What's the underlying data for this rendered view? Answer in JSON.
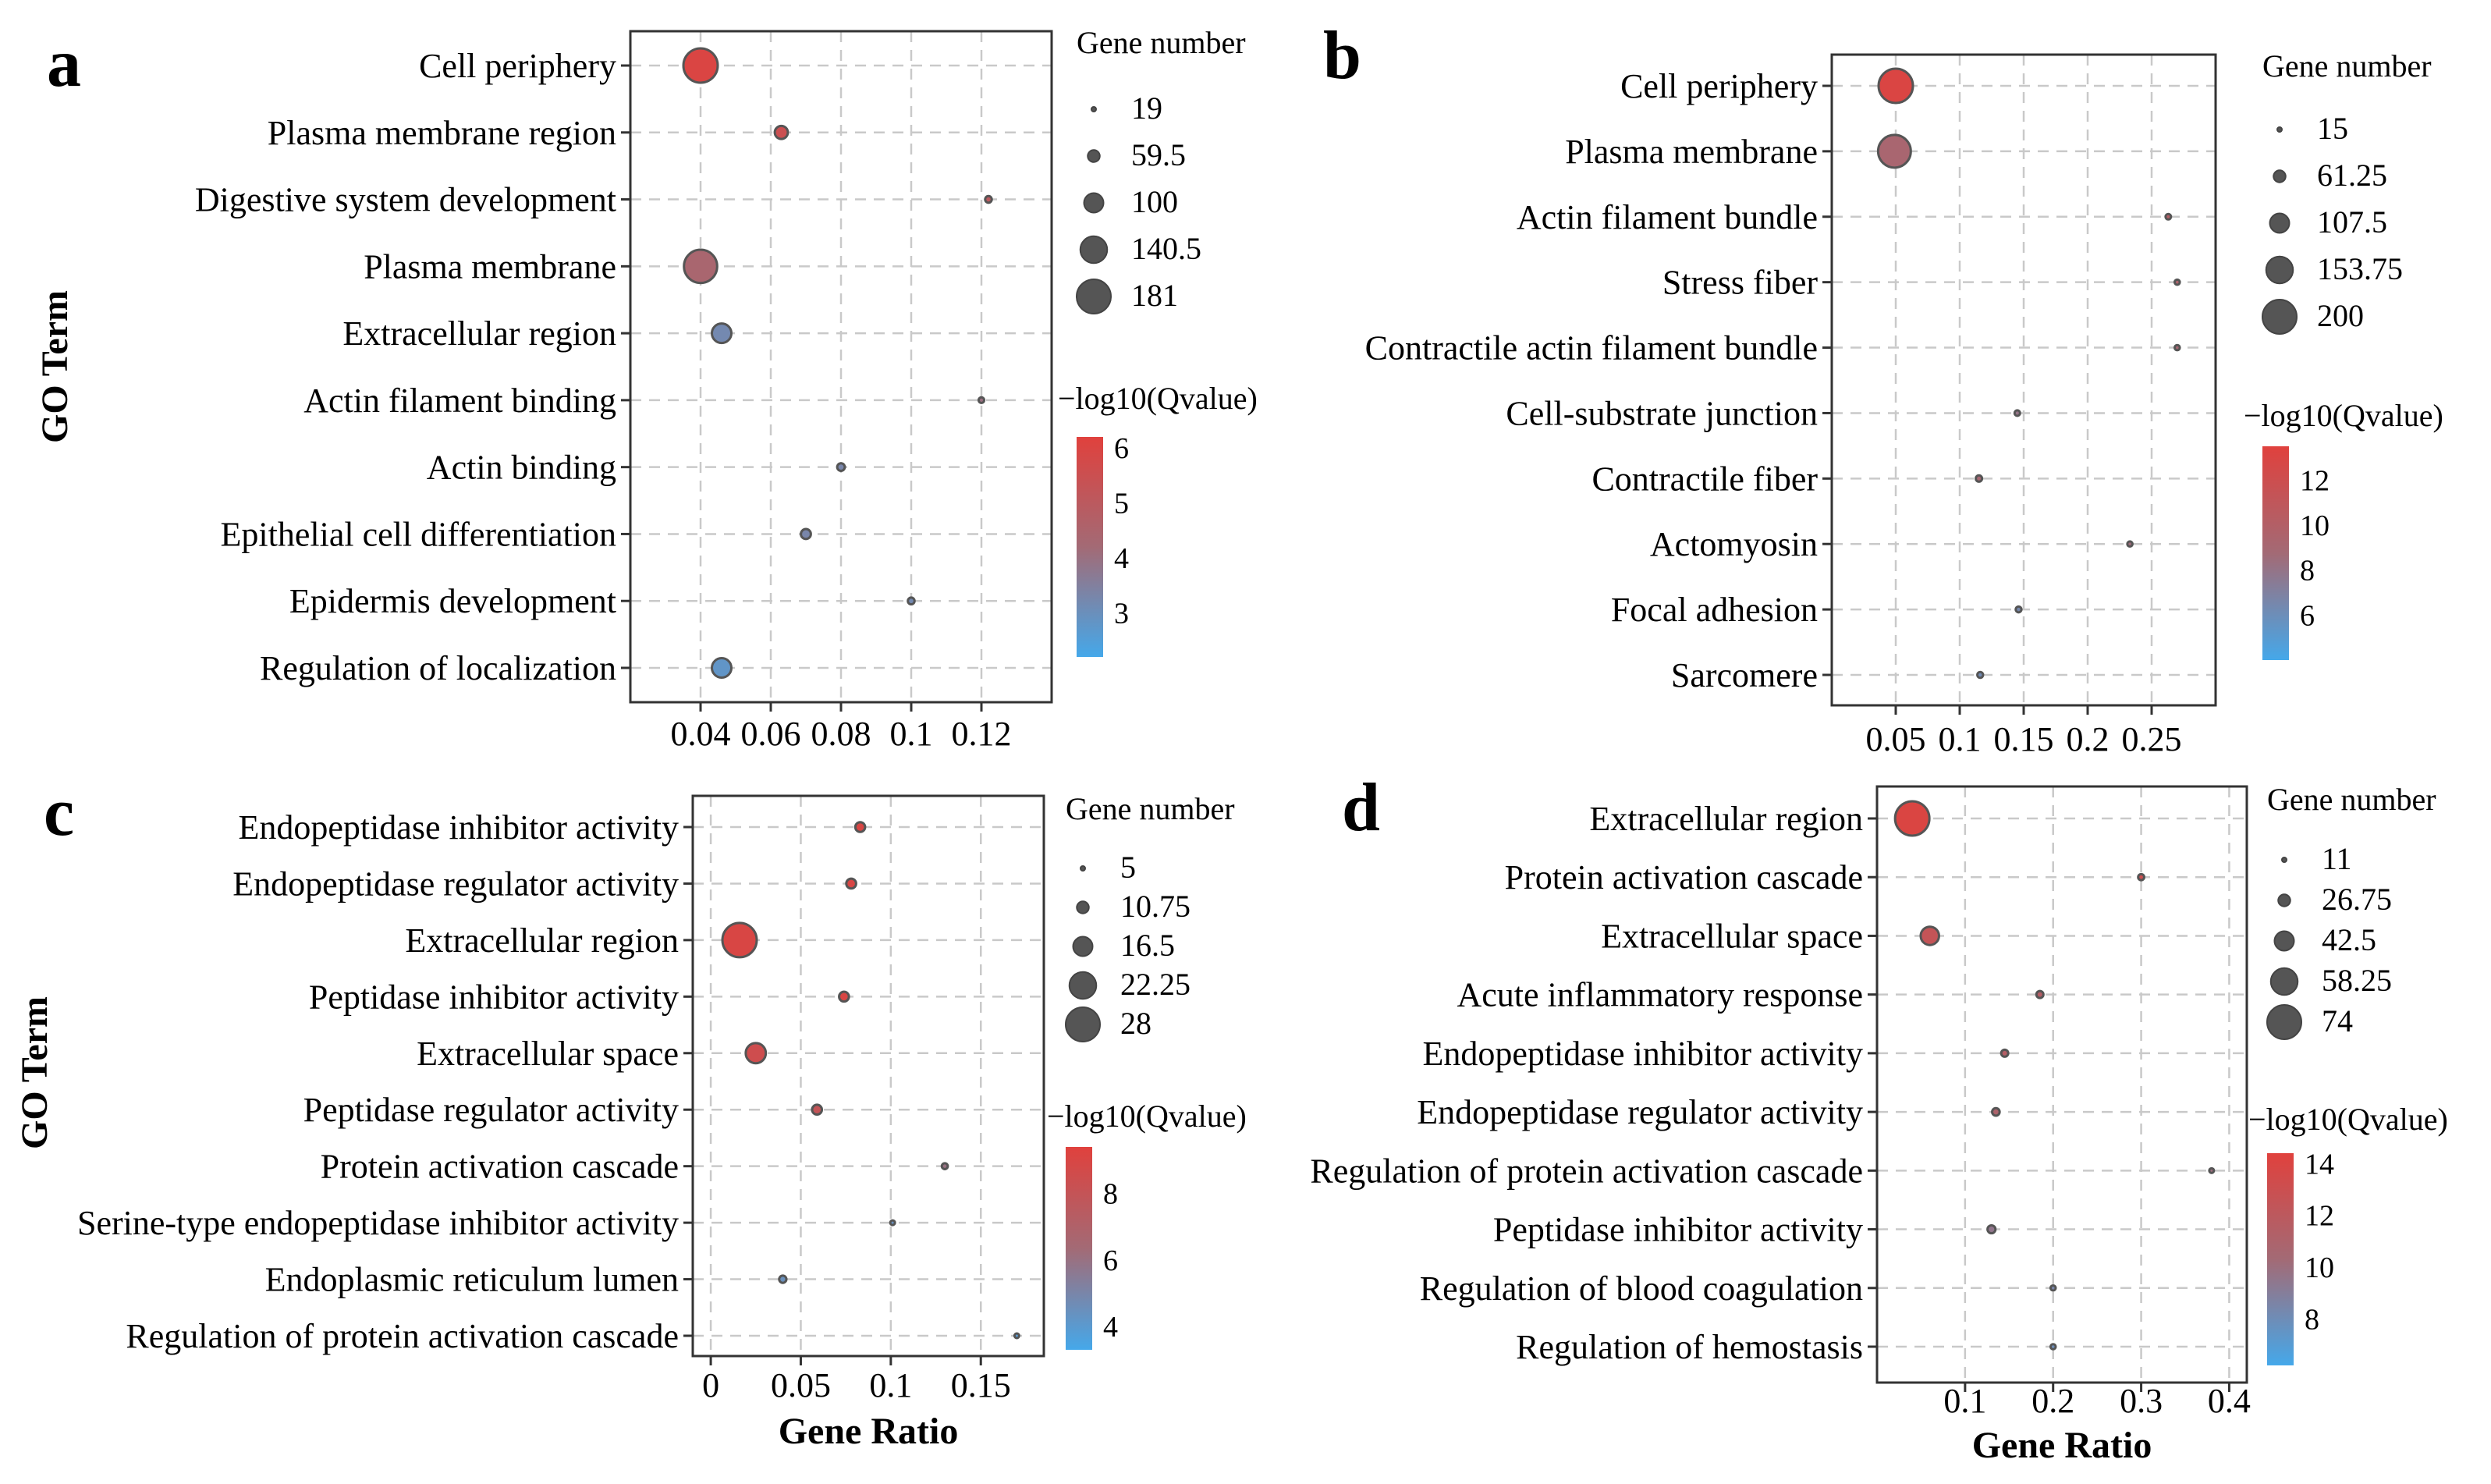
{
  "chart_data": [
    {
      "type": "scatter",
      "panel": "a",
      "title": "",
      "xlabel": "",
      "ylabel": "GO Term",
      "xlim": [
        0.02,
        0.14
      ],
      "xticks": [
        0.04,
        0.06,
        0.08,
        0.1,
        0.12
      ],
      "xtick_labels": [
        "0.04",
        "0.06",
        "0.08",
        "0.1",
        "0.12"
      ],
      "categories": [
        "Cell periphery",
        "Plasma membrane region",
        "Digestive system development",
        "Plasma membrane",
        "Extracellular region",
        "Actin filament binding",
        "Actin binding",
        "Epithelial cell differentiation",
        "Epidermis development",
        "Regulation of localization"
      ],
      "gene_ratio": [
        0.04,
        0.063,
        0.122,
        0.04,
        0.046,
        0.12,
        0.08,
        0.07,
        0.1,
        0.046
      ],
      "gene_number": [
        181,
        65,
        30,
        175,
        100,
        24,
        35,
        48,
        30,
        100
      ],
      "neg_log10_qvalue": [
        6.0,
        5.5,
        5.0,
        4.4,
        3.2,
        4.0,
        3.3,
        3.3,
        3.2,
        2.8
      ],
      "size_legend_title": "Gene number",
      "size_legend": [
        "19",
        "59.5",
        "100",
        "140.5",
        "181"
      ],
      "size_legend_values": [
        19,
        59.5,
        100,
        140.5,
        181
      ],
      "color_legend_title": "−log10(Qvalue)",
      "color_range": [
        2.2,
        6.2
      ],
      "color_ticks": [
        "6",
        "5",
        "4",
        "3"
      ],
      "color_tick_values": [
        6,
        5,
        4,
        3
      ],
      "grid": true
    },
    {
      "type": "scatter",
      "panel": "b",
      "title": "",
      "xlabel": "",
      "ylabel": "",
      "xlim": [
        0.0,
        0.3
      ],
      "xticks": [
        0.05,
        0.1,
        0.15,
        0.2,
        0.25
      ],
      "xtick_labels": [
        "0.05",
        "0.1",
        "0.15",
        "0.2",
        "0.25"
      ],
      "categories": [
        "Cell periphery",
        "Plasma membrane",
        "Actin filament bundle",
        "Stress fiber",
        "Contractile actin filament bundle",
        "Cell-substrate junction",
        "Contractile fiber",
        "Actomyosin",
        "Focal adhesion",
        "Sarcomere"
      ],
      "gene_ratio": [
        0.05,
        0.049,
        0.263,
        0.27,
        0.27,
        0.145,
        0.115,
        0.233,
        0.146,
        0.116
      ],
      "gene_number": [
        200,
        190,
        20,
        18,
        18,
        20,
        25,
        18,
        22,
        22
      ],
      "neg_log10_qvalue": [
        13.0,
        9.2,
        10.0,
        9.5,
        9.0,
        8.0,
        9.0,
        8.5,
        6.5,
        6.2
      ],
      "size_legend_title": "Gene number",
      "size_legend": [
        "15",
        "61.25",
        "107.5",
        "153.75",
        "200"
      ],
      "size_legend_values": [
        15,
        61.25,
        107.5,
        153.75,
        200
      ],
      "color_legend_title": "−log10(Qvalue)",
      "color_range": [
        4.0,
        13.5
      ],
      "color_ticks": [
        "12",
        "10",
        "8",
        "6"
      ],
      "color_tick_values": [
        12,
        10,
        8,
        6
      ],
      "grid": true
    },
    {
      "type": "scatter",
      "panel": "c",
      "title": "",
      "xlabel": "Gene Ratio",
      "ylabel": "GO Term",
      "xlim": [
        -0.01,
        0.185
      ],
      "xticks": [
        0,
        0.05,
        0.1,
        0.15
      ],
      "xtick_labels": [
        "0",
        "0.05",
        "0.1",
        "0.15"
      ],
      "categories": [
        "Endopeptidase inhibitor activity",
        "Endopeptidase regulator activity",
        "Extracellular region",
        "Peptidase inhibitor activity",
        "Extracellular space",
        "Peptidase regulator activity",
        "Protein activation cascade",
        "Serine-type endopeptidase inhibitor activity",
        "Endoplasmic reticulum lumen",
        "Regulation of protein activation cascade"
      ],
      "gene_ratio": [
        0.083,
        0.078,
        0.016,
        0.074,
        0.025,
        0.059,
        0.13,
        0.101,
        0.04,
        0.17
      ],
      "gene_number": [
        9,
        9,
        28,
        9,
        17,
        9,
        6,
        5,
        7,
        5
      ],
      "neg_log10_qvalue": [
        9.0,
        9.0,
        9.0,
        9.0,
        8.5,
        8.0,
        6.0,
        4.5,
        4.5,
        4.0
      ],
      "size_legend_title": "Gene number",
      "size_legend": [
        "5",
        "10.75",
        "16.5",
        "22.25",
        "28"
      ],
      "size_legend_values": [
        5,
        10.75,
        16.5,
        22.25,
        28
      ],
      "color_legend_title": "−log10(Qvalue)",
      "color_range": [
        3.3,
        9.4
      ],
      "color_ticks": [
        "8",
        "6",
        "4"
      ],
      "color_tick_values": [
        8,
        6,
        4
      ],
      "grid": true
    },
    {
      "type": "scatter",
      "panel": "d",
      "title": "",
      "xlabel": "Gene Ratio",
      "ylabel": "",
      "xlim": [
        0.0,
        0.42
      ],
      "xticks": [
        0.1,
        0.2,
        0.3,
        0.4
      ],
      "xtick_labels": [
        "0.1",
        "0.2",
        "0.3",
        "0.4"
      ],
      "categories": [
        "Extracellular region",
        "Protein activation cascade",
        "Extracellular space",
        "Acute inflammatory response",
        "Endopeptidase inhibitor activity",
        "Endopeptidase regulator activity",
        "Regulation of protein activation cascade",
        "Peptidase inhibitor activity",
        "Regulation of blood coagulation",
        "Regulation of hemostasis"
      ],
      "gene_ratio": [
        0.04,
        0.3,
        0.06,
        0.185,
        0.145,
        0.135,
        0.38,
        0.13,
        0.2,
        0.2
      ],
      "gene_number": [
        74,
        14,
        40,
        16,
        16,
        17,
        11,
        18,
        12,
        12
      ],
      "neg_log10_qvalue": [
        14.0,
        13.0,
        12.5,
        11.5,
        11.5,
        11.0,
        10.0,
        9.5,
        8.5,
        8.0
      ],
      "size_legend_title": "Gene number",
      "size_legend": [
        "11",
        "26.75",
        "42.5",
        "58.25",
        "74"
      ],
      "size_legend_values": [
        11,
        26.75,
        42.5,
        58.25,
        74
      ],
      "color_legend_title": "−log10(Qvalue)",
      "color_range": [
        6.2,
        14.4
      ],
      "color_ticks": [
        "14",
        "12",
        "10",
        "8"
      ],
      "color_tick_values": [
        14,
        12,
        10,
        8
      ],
      "grid": true
    }
  ]
}
